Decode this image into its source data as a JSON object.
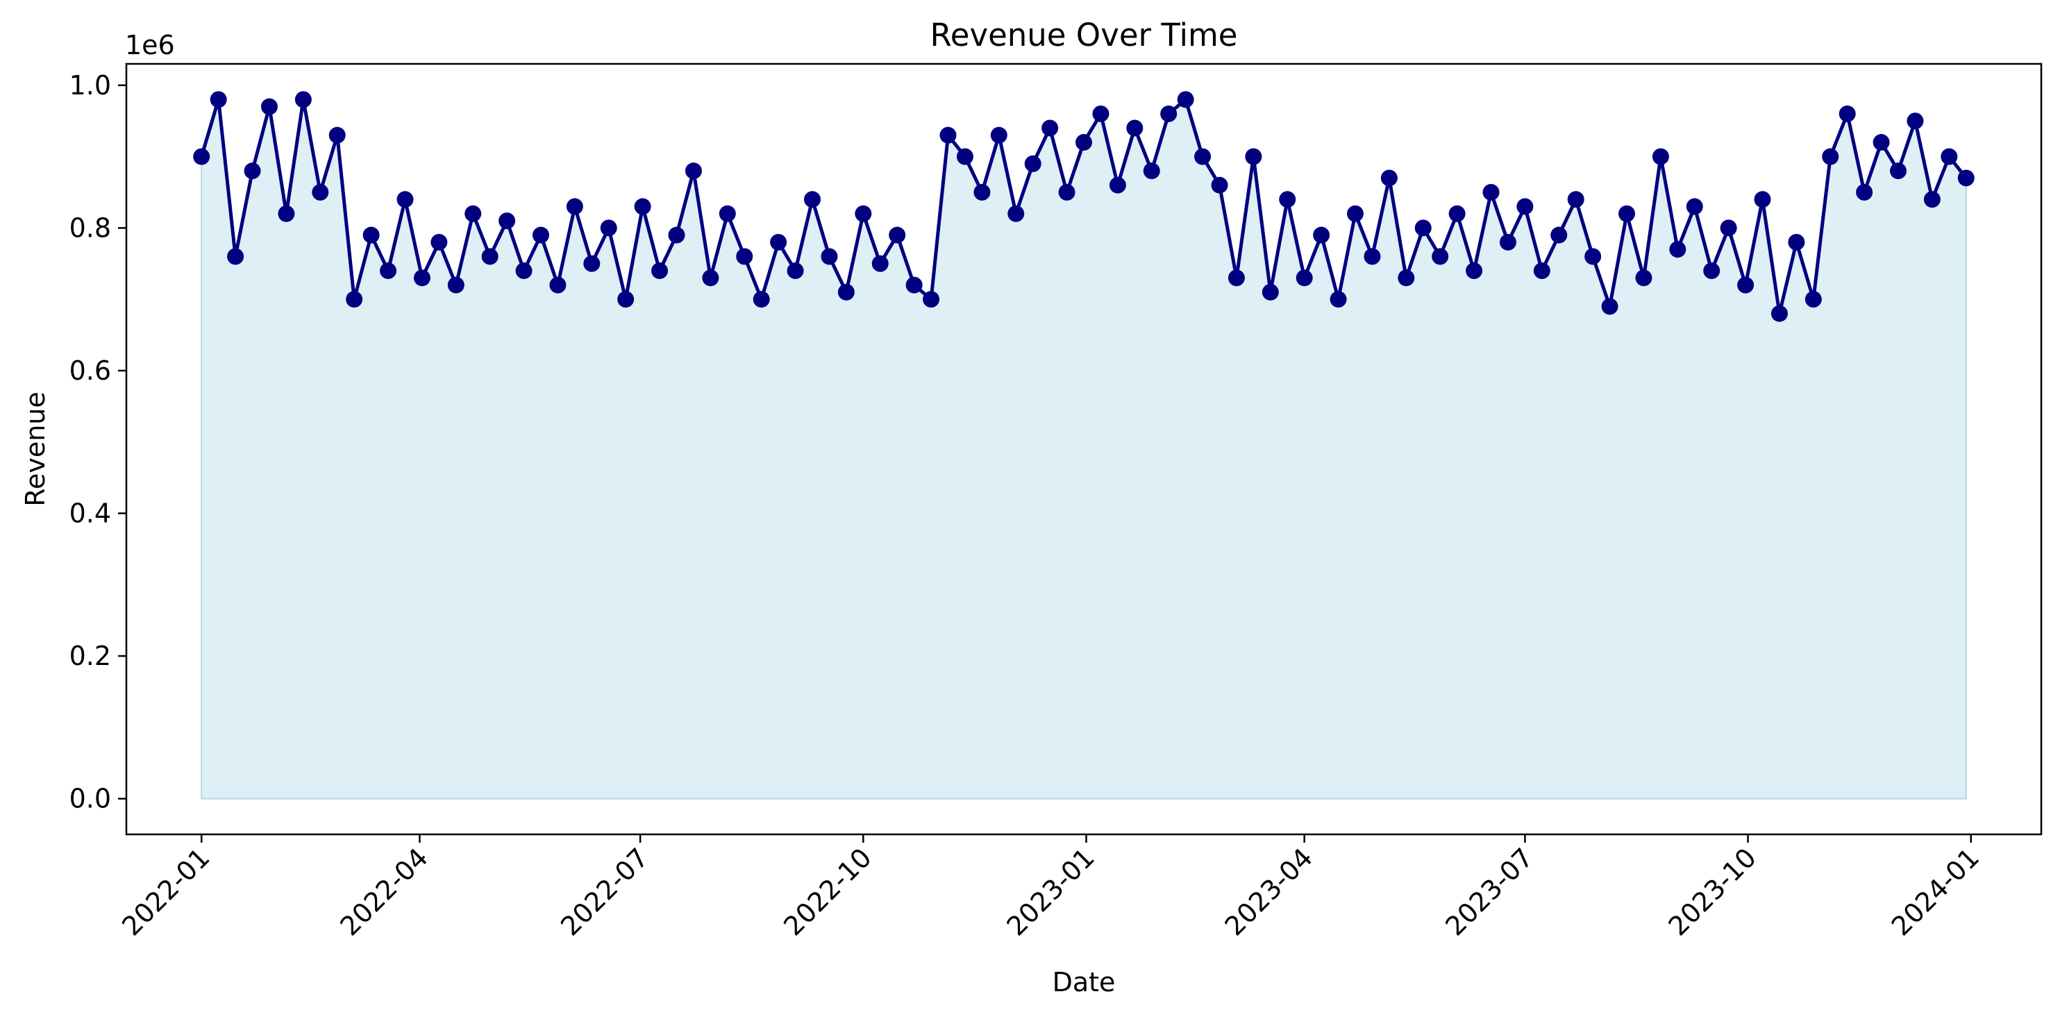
{
  "chart_data": {
    "type": "area",
    "title": "Revenue Over Time",
    "xlabel": "Date",
    "ylabel": "Revenue",
    "y_offset_label": "1e6",
    "x_range": [
      "2021-12-01",
      "2024-01-30"
    ],
    "ylim": [
      -50000,
      1030000
    ],
    "y_ticks": [
      0,
      200000,
      400000,
      600000,
      800000,
      1000000
    ],
    "y_tick_labels": [
      "0.0",
      "0.2",
      "0.4",
      "0.6",
      "0.8",
      "1.0"
    ],
    "x_ticks": [
      "2022-01-01",
      "2022-04-01",
      "2022-07-01",
      "2022-10-01",
      "2023-01-01",
      "2023-04-01",
      "2023-07-01",
      "2023-10-01",
      "2024-01-01"
    ],
    "x_tick_labels": [
      "2022-01",
      "2022-04",
      "2022-07",
      "2022-10",
      "2023-01",
      "2023-04",
      "2023-07",
      "2023-10",
      "2024-01"
    ],
    "grid": false,
    "legend": "none",
    "colors": {
      "line": "#000080",
      "fill": "#add8e6"
    },
    "series": [
      {
        "x": [
          "2022-01-01",
          "2022-01-08",
          "2022-01-15",
          "2022-01-22",
          "2022-01-29",
          "2022-02-05",
          "2022-02-12",
          "2022-02-19",
          "2022-02-26",
          "2022-03-05",
          "2022-03-12",
          "2022-03-19",
          "2022-03-26",
          "2022-04-02",
          "2022-04-09",
          "2022-04-16",
          "2022-04-23",
          "2022-04-30",
          "2022-05-07",
          "2022-05-14",
          "2022-05-21",
          "2022-05-28",
          "2022-06-04",
          "2022-06-11",
          "2022-06-18",
          "2022-06-25",
          "2022-07-02",
          "2022-07-09",
          "2022-07-16",
          "2022-07-23",
          "2022-07-30",
          "2022-08-06",
          "2022-08-13",
          "2022-08-20",
          "2022-08-27",
          "2022-09-03",
          "2022-09-10",
          "2022-09-17",
          "2022-09-24",
          "2022-10-01",
          "2022-10-08",
          "2022-10-15",
          "2022-10-22",
          "2022-10-29",
          "2022-11-05",
          "2022-11-12",
          "2022-11-19",
          "2022-11-26",
          "2022-12-03",
          "2022-12-10",
          "2022-12-17",
          "2022-12-24",
          "2022-12-31",
          "2023-01-07",
          "2023-01-14",
          "2023-01-21",
          "2023-01-28",
          "2023-02-04",
          "2023-02-11",
          "2023-02-18",
          "2023-02-25",
          "2023-03-04",
          "2023-03-11",
          "2023-03-18",
          "2023-03-25",
          "2023-04-01",
          "2023-04-08",
          "2023-04-15",
          "2023-04-22",
          "2023-04-29",
          "2023-05-06",
          "2023-05-13",
          "2023-05-20",
          "2023-05-27",
          "2023-06-03",
          "2023-06-10",
          "2023-06-17",
          "2023-06-24",
          "2023-07-01",
          "2023-07-08",
          "2023-07-15",
          "2023-07-22",
          "2023-07-29",
          "2023-08-05",
          "2023-08-12",
          "2023-08-19",
          "2023-08-26",
          "2023-09-02",
          "2023-09-09",
          "2023-09-16",
          "2023-09-23",
          "2023-09-30",
          "2023-10-07",
          "2023-10-14",
          "2023-10-21",
          "2023-10-28",
          "2023-11-04",
          "2023-11-11",
          "2023-11-18",
          "2023-11-25",
          "2023-12-02",
          "2023-12-09",
          "2023-12-16",
          "2023-12-23",
          "2023-12-30"
        ],
        "values": [
          900000,
          980000,
          760000,
          880000,
          970000,
          820000,
          980000,
          850000,
          930000,
          700000,
          790000,
          740000,
          840000,
          730000,
          780000,
          720000,
          820000,
          760000,
          810000,
          740000,
          790000,
          720000,
          830000,
          750000,
          800000,
          700000,
          830000,
          740000,
          790000,
          880000,
          730000,
          820000,
          760000,
          700000,
          780000,
          740000,
          840000,
          760000,
          710000,
          820000,
          750000,
          790000,
          720000,
          700000,
          930000,
          900000,
          850000,
          930000,
          820000,
          890000,
          940000,
          850000,
          920000,
          960000,
          860000,
          940000,
          880000,
          960000,
          980000,
          900000,
          860000,
          730000,
          900000,
          710000,
          840000,
          730000,
          790000,
          700000,
          820000,
          760000,
          870000,
          730000,
          800000,
          760000,
          820000,
          740000,
          850000,
          780000,
          830000,
          740000,
          790000,
          840000,
          760000,
          690000,
          820000,
          730000,
          900000,
          770000,
          830000,
          740000,
          800000,
          720000,
          840000,
          680000,
          780000,
          700000,
          900000,
          960000,
          850000,
          920000,
          880000,
          950000,
          840000,
          900000,
          870000
        ]
      }
    ]
  }
}
